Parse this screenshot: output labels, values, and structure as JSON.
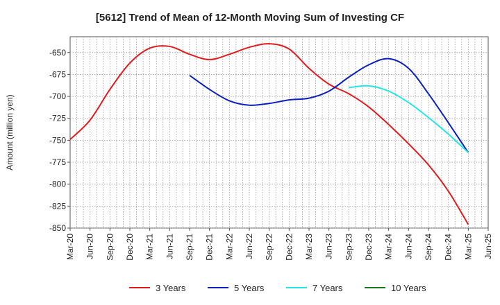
{
  "chart_data": {
    "type": "line",
    "title": "[5612]  Trend of Mean of 12-Month Moving Sum of Investing CF",
    "xlabel": "",
    "ylabel": "Amount (million yen)",
    "ylim": [
      -850,
      -632
    ],
    "yticks": [
      -650,
      -675,
      -700,
      -725,
      -750,
      -775,
      -800,
      -825,
      -850
    ],
    "xticks": [
      "Mar-20",
      "Jun-20",
      "Sep-20",
      "Dec-20",
      "Mar-21",
      "Jun-21",
      "Sep-21",
      "Dec-21",
      "Mar-22",
      "Jun-22",
      "Sep-22",
      "Dec-22",
      "Mar-23",
      "Jun-23",
      "Sep-23",
      "Dec-23",
      "Mar-24",
      "Jun-24",
      "Sep-24",
      "Dec-24",
      "Mar-25",
      "Jun-25"
    ],
    "grid": true,
    "legend_position": "bottom",
    "series": [
      {
        "name": "3 Years",
        "color": "#e31a1c",
        "x": [
          0,
          1,
          2,
          3,
          4,
          5,
          6,
          7,
          8,
          9,
          10,
          11,
          12,
          13,
          14,
          15,
          16,
          17,
          18,
          19,
          20
        ],
        "values": [
          -749,
          -727,
          -692,
          -662,
          -645,
          -643,
          -652,
          -658,
          -652,
          -644,
          -640,
          -646,
          -668,
          -686,
          -697,
          -712,
          -732,
          -754,
          -778,
          -808,
          -846
        ]
      },
      {
        "name": "5 Years",
        "color": "#0a1fc2",
        "x": [
          6,
          7,
          8,
          9,
          10,
          11,
          12,
          13,
          14,
          15,
          16,
          17,
          18,
          19,
          20
        ],
        "values": [
          -676,
          -692,
          -705,
          -710,
          -708,
          -704,
          -702,
          -694,
          -678,
          -664,
          -657,
          -668,
          -697,
          -730,
          -764
        ]
      },
      {
        "name": "7 Years",
        "color": "#22e6e6",
        "x": [
          14,
          15,
          16,
          17,
          18,
          19,
          20
        ],
        "values": [
          -690,
          -688,
          -694,
          -707,
          -724,
          -743,
          -764
        ]
      },
      {
        "name": "10 Years",
        "color": "#1a7a1a",
        "x": [],
        "values": []
      }
    ]
  }
}
